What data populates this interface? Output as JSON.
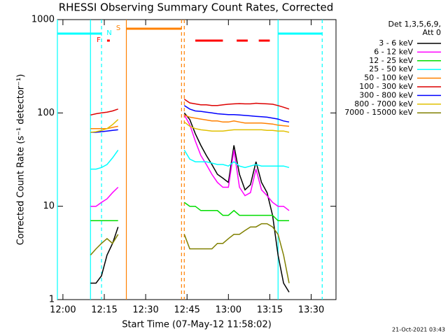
{
  "chart_data": {
    "type": "line",
    "title": "RHESSI Observing Summary Count Rates, Corrected",
    "xlabel": "Start Time (07-May-12 11:58:02)",
    "ylabel": "Corrected Count Rate (s⁻¹ detector⁻¹)",
    "footer": "21-Oct-2021 03:43",
    "legend_title": [
      "Det 1,3,5,6,9,",
      "Att 0"
    ],
    "log_y": true,
    "xlim": [
      "11:58",
      "13:39"
    ],
    "xticks": [
      "12:00",
      "12:15",
      "12:30",
      "12:45",
      "13:00",
      "13:15",
      "13:30"
    ],
    "ylim": [
      1,
      1000
    ],
    "yticks": [
      1,
      10,
      100,
      1000
    ],
    "x": [
      "12:10",
      "12:12",
      "12:14",
      "12:16",
      "12:18",
      "12:20",
      "12:32",
      "12:44",
      "12:46",
      "12:48",
      "12:50",
      "12:52",
      "12:54",
      "12:56",
      "12:58",
      "13:00",
      "13:02",
      "13:04",
      "13:06",
      "13:08",
      "13:10",
      "13:12",
      "13:14",
      "13:16",
      "13:18",
      "13:20",
      "13:22"
    ],
    "series": [
      {
        "name": "3 - 6 keV",
        "color": "#000000",
        "values": [
          1.5,
          1.5,
          1.8,
          3,
          4,
          6,
          null,
          100,
          85,
          60,
          45,
          35,
          28,
          22,
          20,
          18,
          45,
          22,
          15,
          17,
          30,
          18,
          14,
          8,
          3,
          1.5,
          1.2
        ]
      },
      {
        "name": "6 - 12 keV",
        "color": "#ff00ff",
        "values": [
          10,
          10,
          11,
          12,
          14,
          16,
          null,
          95,
          75,
          50,
          35,
          28,
          22,
          18,
          16,
          16,
          40,
          16,
          13,
          14,
          25,
          15,
          13,
          11,
          10,
          10,
          9
        ]
      },
      {
        "name": "12 - 25 keV",
        "color": "#00dd00",
        "values": [
          7,
          7,
          7,
          7,
          7,
          7,
          null,
          11,
          10,
          10,
          9,
          9,
          9,
          9,
          8,
          8,
          9,
          8,
          8,
          8,
          8,
          8,
          8,
          8,
          7,
          7,
          7
        ]
      },
      {
        "name": "25 - 50 keV",
        "color": "#00ffff",
        "values": [
          25,
          25,
          26,
          28,
          33,
          40,
          null,
          40,
          32,
          30,
          30,
          30,
          29,
          28,
          28,
          27,
          30,
          27,
          26,
          27,
          28,
          27,
          27,
          27,
          27,
          27,
          26
        ]
      },
      {
        "name": "50 - 100 keV",
        "color": "#ff8000",
        "values": [
          68,
          68,
          68,
          68,
          70,
          72,
          null,
          95,
          90,
          88,
          86,
          84,
          82,
          82,
          80,
          80,
          82,
          80,
          78,
          78,
          78,
          78,
          77,
          76,
          74,
          73,
          72
        ]
      },
      {
        "name": "100 - 300 keV",
        "color": "#dd0000",
        "values": [
          95,
          98,
          100,
          102,
          105,
          110,
          null,
          140,
          128,
          125,
          122,
          122,
          120,
          120,
          122,
          124,
          125,
          126,
          125,
          125,
          127,
          126,
          125,
          124,
          120,
          115,
          110
        ]
      },
      {
        "name": "300 - 800 keV",
        "color": "#0000ff",
        "values": [
          62,
          62,
          63,
          64,
          65,
          66,
          null,
          120,
          110,
          105,
          104,
          102,
          100,
          98,
          97,
          96,
          96,
          95,
          94,
          93,
          92,
          91,
          90,
          88,
          86,
          82,
          80
        ]
      },
      {
        "name": "800 - 7000 keV",
        "color": "#e0c000",
        "values": [
          62,
          63,
          65,
          68,
          75,
          85,
          null,
          80,
          72,
          68,
          66,
          65,
          64,
          64,
          64,
          65,
          66,
          66,
          66,
          66,
          66,
          66,
          65,
          65,
          64,
          64,
          62
        ]
      },
      {
        "name": "7000 - 15000 keV",
        "color": "#808000",
        "values": [
          3,
          3.5,
          4,
          4.5,
          4,
          5,
          null,
          5,
          3.5,
          3.5,
          3.5,
          3.5,
          3.5,
          4,
          4,
          4.5,
          5,
          5,
          5.5,
          6,
          6,
          6.5,
          6.5,
          6,
          5,
          3,
          1.5
        ]
      }
    ],
    "flags": [
      {
        "name": "F",
        "color": "#ff0000",
        "ranges": [
          [
            "12:16",
            "12:17"
          ],
          [
            "12:48",
            "12:58"
          ],
          [
            "13:03",
            "13:07"
          ],
          [
            "13:11",
            "13:15"
          ]
        ]
      },
      {
        "name": "N",
        "color": "#00ffff",
        "ranges": [
          [
            "11:58",
            "12:14"
          ],
          [
            "13:18",
            "13:34"
          ]
        ]
      },
      {
        "name": "S",
        "color": "#ff8000",
        "ranges": [
          [
            "12:23",
            "12:43"
          ]
        ]
      }
    ],
    "vlines": [
      {
        "x": "11:58",
        "color": "#00ffff",
        "style": "solid"
      },
      {
        "x": "12:10",
        "color": "#00ffff",
        "style": "solid"
      },
      {
        "x": "12:14",
        "color": "#00ffff",
        "style": "dashed"
      },
      {
        "x": "12:23",
        "color": "#ff8000",
        "style": "solid"
      },
      {
        "x": "12:43",
        "color": "#ff8000",
        "style": "dashed"
      },
      {
        "x": "12:44",
        "color": "#ff8000",
        "style": "dashed"
      },
      {
        "x": "13:18",
        "color": "#00ffff",
        "style": "solid"
      },
      {
        "x": "13:34",
        "color": "#00ffff",
        "style": "dashed"
      }
    ]
  }
}
